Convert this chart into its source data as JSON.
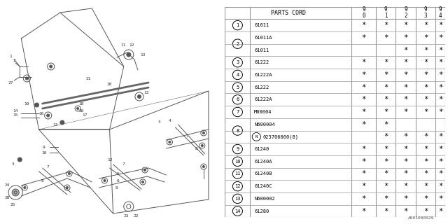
{
  "bg_color": "#ffffff",
  "header": "PARTS CORD",
  "year_cols": [
    "9\n0",
    "9\n1",
    "9\n2",
    "9\n3",
    "9\n4"
  ],
  "rows": [
    {
      "num": "1",
      "parts": [
        {
          "code": "61011",
          "stars": [
            1,
            1,
            1,
            1,
            1
          ]
        }
      ]
    },
    {
      "num": "2",
      "parts": [
        {
          "code": "61011A",
          "stars": [
            1,
            1,
            1,
            1,
            1
          ]
        },
        {
          "code": "61011",
          "stars": [
            0,
            0,
            1,
            1,
            1
          ]
        }
      ]
    },
    {
      "num": "3",
      "parts": [
        {
          "code": "61222",
          "stars": [
            1,
            1,
            1,
            1,
            1
          ]
        }
      ]
    },
    {
      "num": "4",
      "parts": [
        {
          "code": "61222A",
          "stars": [
            1,
            1,
            1,
            1,
            1
          ]
        }
      ]
    },
    {
      "num": "5",
      "parts": [
        {
          "code": "61222",
          "stars": [
            1,
            1,
            1,
            1,
            1
          ]
        }
      ]
    },
    {
      "num": "6",
      "parts": [
        {
          "code": "61222A",
          "stars": [
            1,
            1,
            1,
            1,
            1
          ]
        }
      ]
    },
    {
      "num": "7",
      "parts": [
        {
          "code": "M00004",
          "stars": [
            1,
            1,
            1,
            1,
            1
          ]
        }
      ]
    },
    {
      "num": "8",
      "parts": [
        {
          "code": "N600004",
          "stars": [
            1,
            1,
            0,
            0,
            0
          ]
        },
        {
          "code": "N023706000(8)",
          "stars": [
            0,
            1,
            1,
            1,
            1
          ],
          "circle_n": true
        }
      ]
    },
    {
      "num": "9",
      "parts": [
        {
          "code": "61240",
          "stars": [
            1,
            1,
            1,
            1,
            1
          ]
        }
      ]
    },
    {
      "num": "10",
      "parts": [
        {
          "code": "61240A",
          "stars": [
            1,
            1,
            1,
            1,
            1
          ]
        }
      ]
    },
    {
      "num": "11",
      "parts": [
        {
          "code": "61240B",
          "stars": [
            1,
            1,
            1,
            1,
            1
          ]
        }
      ]
    },
    {
      "num": "12",
      "parts": [
        {
          "code": "61240C",
          "stars": [
            1,
            1,
            1,
            1,
            1
          ]
        }
      ]
    },
    {
      "num": "13",
      "parts": [
        {
          "code": "N600002",
          "stars": [
            1,
            1,
            1,
            1,
            1
          ]
        }
      ]
    },
    {
      "num": "14",
      "parts": [
        {
          "code": "61280",
          "stars": [
            1,
            1,
            1,
            1,
            1
          ]
        }
      ]
    }
  ],
  "footer": "A601000029",
  "line_color": "#999999",
  "text_color": "#000000",
  "draw_color": "#555555",
  "font_size": 5.5
}
